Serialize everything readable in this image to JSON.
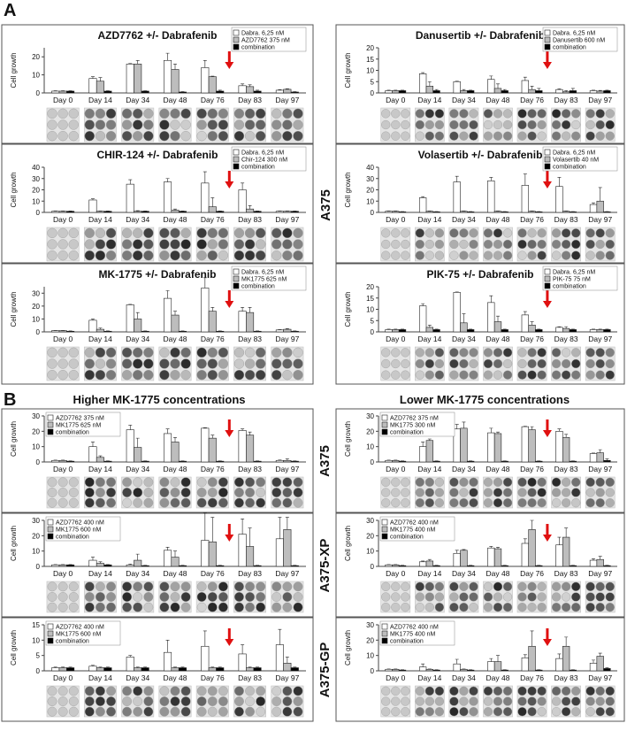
{
  "labels": {
    "panel_a": "A",
    "panel_b": "B",
    "a_cell_line": "A375",
    "b_left_header": "Higher MK-1775 concentrations",
    "b_right_header": "Lower MK-1775 concentrations",
    "b_row_1": "A375",
    "b_row_2": "A375-XP",
    "b_row_3": "A375-GP"
  },
  "chart_data": [
    {
      "type": "bar",
      "title": "AZD7762 +/- Dabrafenib",
      "y_label": "Cell growth",
      "legend": "upper right",
      "categories": [
        "Day 0",
        "Day 14",
        "Day 34",
        "Day 48",
        "Day 76",
        "Day 83",
        "Day 97"
      ],
      "ylim": [
        0,
        25
      ],
      "yticks": [
        0,
        10,
        20
      ],
      "series": [
        {
          "name": "Dabra. 6,25 nM",
          "color": "#ffffff",
          "values": [
            1,
            8,
            16,
            18,
            14,
            4,
            1.5
          ],
          "errors": [
            0.2,
            1,
            0.3,
            4,
            4,
            1,
            0.3
          ]
        },
        {
          "name": "AZD7762 375 nM",
          "color": "#bdbdbd",
          "values": [
            1,
            6.5,
            16,
            13,
            9,
            3.5,
            2
          ],
          "errors": [
            0.2,
            2,
            2,
            3,
            0.3,
            1,
            0.3
          ]
        },
        {
          "name": "combination",
          "color": "#000000",
          "values": [
            1,
            1,
            1,
            0.5,
            1,
            1,
            0.5
          ],
          "errors": [
            0.2,
            0.2,
            0.2,
            0.2,
            0.5,
            0.5,
            0.2
          ]
        }
      ]
    },
    {
      "type": "bar",
      "title": "Danusertib +/- Dabrafenib",
      "y_label": "Cell growth",
      "legend": "upper right",
      "categories": [
        "Day 0",
        "Day 14",
        "Day 34",
        "Day 48",
        "Day 76",
        "Day 83",
        "Day 97"
      ],
      "ylim": [
        0,
        20
      ],
      "yticks": [
        0,
        5,
        10,
        15,
        20
      ],
      "series": [
        {
          "name": "Dabra. 6,25 nM",
          "color": "#ffffff",
          "values": [
            1,
            8.5,
            5,
            6,
            5.5,
            1.5,
            1
          ],
          "errors": [
            0.2,
            0.5,
            0.2,
            1.5,
            1.5,
            0.3,
            0.2
          ]
        },
        {
          "name": "Danusertib 600 nM",
          "color": "#bdbdbd",
          "values": [
            1,
            3,
            1,
            2,
            1.5,
            0.5,
            0.8
          ],
          "errors": [
            0.2,
            2,
            0.5,
            2,
            1.5,
            0.5,
            0.3
          ]
        },
        {
          "name": "combination",
          "color": "#000000",
          "values": [
            1,
            1,
            1,
            1,
            1,
            1,
            1
          ],
          "errors": [
            0.2,
            0.5,
            0.2,
            0.5,
            1,
            1,
            0.2
          ]
        }
      ]
    },
    {
      "type": "bar",
      "title": "CHIR-124 +/- Dabrafenib",
      "y_label": "Cell growth",
      "legend": "upper right",
      "categories": [
        "Day 0",
        "Day 14",
        "Day 34",
        "Day 48",
        "Day 76",
        "Day 83",
        "Day 97"
      ],
      "ylim": [
        0,
        40
      ],
      "yticks": [
        0,
        10,
        20,
        30,
        40
      ],
      "series": [
        {
          "name": "Dabra. 6,25 nM",
          "color": "#ffffff",
          "values": [
            1,
            11,
            25,
            27,
            26,
            20,
            1
          ],
          "errors": [
            0.2,
            1,
            4,
            3,
            10,
            6,
            0.2
          ]
        },
        {
          "name": "Chir-124 300 nM",
          "color": "#bdbdbd",
          "values": [
            1,
            1,
            1,
            2,
            5,
            3,
            1
          ],
          "errors": [
            0.2,
            0.2,
            0.5,
            1,
            8,
            3,
            0.2
          ]
        },
        {
          "name": "combination",
          "color": "#000000",
          "values": [
            1,
            1,
            1,
            1,
            1,
            1,
            1
          ],
          "errors": [
            0.2,
            0.2,
            0.2,
            0.2,
            0.2,
            0.2,
            0.2
          ]
        }
      ]
    },
    {
      "type": "bar",
      "title": "Volasertib +/- Dabrafenib",
      "y_label": "Cell growth",
      "legend": "upper right",
      "categories": [
        "Day 0",
        "Day 14",
        "Day 34",
        "Day 48",
        "Day 76",
        "Day 83",
        "Day 97"
      ],
      "ylim": [
        0,
        40
      ],
      "yticks": [
        0,
        10,
        20,
        30,
        40
      ],
      "series": [
        {
          "name": "Dabra. 6,25 nM",
          "color": "#ffffff",
          "values": [
            1,
            13,
            27,
            28,
            24,
            23,
            7
          ],
          "errors": [
            0.2,
            1,
            5,
            3,
            10,
            8,
            1.5
          ]
        },
        {
          "name": "Volasertib 40 nM",
          "color": "#bdbdbd",
          "values": [
            1,
            1,
            1,
            1,
            1,
            1,
            10
          ],
          "errors": [
            0.2,
            0.2,
            0.2,
            0.2,
            0.2,
            0.2,
            12
          ]
        },
        {
          "name": "combination",
          "color": "#000000",
          "values": [
            0.5,
            0.5,
            0.5,
            0.5,
            0.5,
            0.5,
            0.5
          ],
          "errors": [
            0.2,
            0.2,
            0.2,
            0.2,
            0.2,
            0.2,
            0.2
          ]
        }
      ]
    },
    {
      "type": "bar",
      "title": "MK-1775 +/- Dabrafenib",
      "y_label": "Cell growth",
      "legend": "upper right",
      "categories": [
        "Day 0",
        "Day 14",
        "Day 34",
        "Day 48",
        "Day 76",
        "Day 83",
        "Day 97"
      ],
      "ylim": [
        0,
        35
      ],
      "yticks": [
        0,
        10,
        20,
        30
      ],
      "series": [
        {
          "name": "Dabra. 6,25 nM",
          "color": "#ffffff",
          "values": [
            1,
            9,
            21,
            26,
            34,
            16,
            1.5
          ],
          "errors": [
            0.2,
            1,
            0.3,
            6,
            8,
            3,
            0.3
          ]
        },
        {
          "name": "MK1775 625 nM",
          "color": "#bdbdbd",
          "values": [
            1,
            2,
            10,
            13,
            16,
            15,
            2
          ],
          "errors": [
            0.2,
            1,
            5,
            3,
            3,
            4,
            0.5
          ]
        },
        {
          "name": "combination",
          "color": "#000000",
          "values": [
            0.5,
            0.5,
            0.5,
            0.5,
            0.5,
            0.5,
            0.5
          ],
          "errors": [
            0.2,
            0.2,
            0.2,
            0.2,
            0.2,
            0.2,
            0.2
          ]
        }
      ]
    },
    {
      "type": "bar",
      "title": "PIK-75 +/- Dabrafenib",
      "y_label": "Cell growth",
      "legend": "upper right",
      "categories": [
        "Day 0",
        "Day 14",
        "Day 34",
        "Day 48",
        "Day 76",
        "Day 83",
        "Day 97"
      ],
      "ylim": [
        0,
        20
      ],
      "yticks": [
        0,
        5,
        10,
        15,
        20
      ],
      "series": [
        {
          "name": "Dabra. 6,25 nM",
          "color": "#ffffff",
          "values": [
            1,
            11.5,
            17.5,
            13,
            7.5,
            2,
            1
          ],
          "errors": [
            0.2,
            1,
            0.2,
            3,
            1.5,
            0.3,
            0.2
          ]
        },
        {
          "name": "PIK-75 75 nM",
          "color": "#bdbdbd",
          "values": [
            1,
            2,
            4,
            4.5,
            3,
            1.5,
            1
          ],
          "errors": [
            0.2,
            1,
            4,
            2.5,
            1.5,
            0.8,
            0.2
          ]
        },
        {
          "name": "combination",
          "color": "#000000",
          "values": [
            1,
            1,
            1,
            1,
            1,
            1,
            1
          ],
          "errors": [
            0.2,
            0.2,
            0.2,
            0.2,
            0.2,
            0.2,
            0.2
          ]
        }
      ]
    },
    {
      "type": "bar",
      "y_label": "Cell growth",
      "legend": "upper left",
      "categories": [
        "Day 0",
        "Day 14",
        "Day 34",
        "Day 48",
        "Day 76",
        "Day 83",
        "Day 97"
      ],
      "ylim": [
        0,
        30
      ],
      "yticks": [
        0,
        10,
        20,
        30
      ],
      "series": [
        {
          "name": "AZD7762 375 nM",
          "color": "#ffffff",
          "values": [
            1,
            10,
            21,
            18.5,
            22,
            20.5,
            1
          ],
          "errors": [
            0.2,
            3,
            3,
            3,
            0.3,
            1,
            0.3
          ]
        },
        {
          "name": "MK1775 625 nM",
          "color": "#bdbdbd",
          "values": [
            1,
            3,
            9.5,
            13,
            15.5,
            17.5,
            1
          ],
          "errors": [
            0.2,
            1,
            6,
            3,
            2,
            2,
            1
          ]
        },
        {
          "name": "combination",
          "color": "#000000",
          "values": [
            0.5,
            0.5,
            0.5,
            0.5,
            0.5,
            0.5,
            0.5
          ],
          "errors": [
            0.2,
            0.2,
            0.2,
            0.2,
            0.2,
            0.2,
            0.2
          ]
        }
      ]
    },
    {
      "type": "bar",
      "y_label": "Cell growth",
      "legend": "upper left",
      "categories": [
        "Day 0",
        "Day 14",
        "Day 34",
        "Day 48",
        "Day 76",
        "Day 83",
        "Day 97"
      ],
      "ylim": [
        0,
        30
      ],
      "yticks": [
        0,
        10,
        20,
        30
      ],
      "series": [
        {
          "name": "AZD7762 375 nM",
          "color": "#ffffff",
          "values": [
            1,
            10,
            21.5,
            19,
            23,
            20,
            5.5
          ],
          "errors": [
            0.2,
            3,
            3,
            3,
            0.3,
            1.5,
            0.3
          ]
        },
        {
          "name": "MK1775 300 nM",
          "color": "#bdbdbd",
          "values": [
            1,
            14,
            22,
            18.5,
            21,
            16,
            6
          ],
          "errors": [
            0.2,
            1,
            4,
            1,
            2,
            2,
            2
          ]
        },
        {
          "name": "combination",
          "color": "#000000",
          "values": [
            0.5,
            0.5,
            0.5,
            0.5,
            0.5,
            0.5,
            1
          ],
          "errors": [
            0.2,
            0.2,
            0.2,
            0.2,
            0.2,
            0.2,
            1
          ]
        }
      ]
    },
    {
      "type": "bar",
      "y_label": "Cell growth",
      "legend": "upper left",
      "categories": [
        "Day 0",
        "Day 14",
        "Day 34",
        "Day 48",
        "Day 76",
        "Day 83",
        "Day 97"
      ],
      "ylim": [
        0,
        30
      ],
      "yticks": [
        0,
        10,
        20,
        30
      ],
      "series": [
        {
          "name": "AZD7762 400 nM",
          "color": "#ffffff",
          "values": [
            1,
            4,
            1,
            10.5,
            17,
            21,
            18
          ],
          "errors": [
            0.2,
            2,
            0.5,
            2,
            18,
            10,
            14
          ]
        },
        {
          "name": "MK1775 600 nM",
          "color": "#bdbdbd",
          "values": [
            1,
            2,
            4,
            6,
            16,
            13,
            24
          ],
          "errors": [
            0.2,
            1,
            4,
            4,
            16,
            12,
            8
          ]
        },
        {
          "name": "combination",
          "color": "#000000",
          "values": [
            1,
            1,
            0.5,
            0.5,
            0.5,
            0.5,
            0.5
          ],
          "errors": [
            0.2,
            0.2,
            0.2,
            0.2,
            0.2,
            0.2,
            0.2
          ]
        }
      ]
    },
    {
      "type": "bar",
      "y_label": "Cell growth",
      "legend": "upper left",
      "categories": [
        "Day 0",
        "Day 14",
        "Day 34",
        "Day 48",
        "Day 76",
        "Day 83",
        "Day 97"
      ],
      "ylim": [
        0,
        30
      ],
      "yticks": [
        0,
        10,
        20,
        30
      ],
      "series": [
        {
          "name": "AZD7762 400 nM",
          "color": "#ffffff",
          "values": [
            1,
            3,
            8.5,
            12,
            15,
            14,
            4
          ],
          "errors": [
            0.2,
            0.5,
            2,
            1,
            3,
            5,
            1
          ]
        },
        {
          "name": "MK1775 400 nM",
          "color": "#bdbdbd",
          "values": [
            1,
            3.5,
            10.5,
            11.5,
            24,
            19,
            4.5
          ],
          "errors": [
            0.2,
            1,
            0.5,
            1,
            6,
            6,
            2
          ]
        },
        {
          "name": "combination",
          "color": "#000000",
          "values": [
            0.5,
            0.5,
            0.5,
            0.5,
            0.5,
            0.5,
            0.5
          ],
          "errors": [
            0.2,
            0.2,
            0.2,
            0.2,
            0.2,
            0.2,
            0.2
          ]
        }
      ]
    },
    {
      "type": "bar",
      "y_label": "Cell growth",
      "legend": "upper left",
      "categories": [
        "Day 0",
        "Day 14",
        "Day 34",
        "Day 48",
        "Day 76",
        "Day 83",
        "Day 97"
      ],
      "ylim": [
        0,
        15
      ],
      "yticks": [
        0,
        5,
        10,
        15
      ],
      "series": [
        {
          "name": "AZD7762 400 nM",
          "color": "#ffffff",
          "values": [
            1,
            1.5,
            4.5,
            6,
            8,
            5.5,
            8.5
          ],
          "errors": [
            0.2,
            0.3,
            0.5,
            4,
            5,
            3,
            5
          ]
        },
        {
          "name": "MK1775 600 nM",
          "color": "#bdbdbd",
          "values": [
            1,
            1,
            1,
            1,
            1,
            1,
            2.5
          ],
          "errors": [
            0.2,
            0.2,
            0.2,
            0.2,
            0.2,
            0.2,
            2
          ]
        },
        {
          "name": "combination",
          "color": "#000000",
          "values": [
            1,
            1,
            1,
            1,
            1,
            1,
            1
          ],
          "errors": [
            0.2,
            0.2,
            0.2,
            0.2,
            0.2,
            0.2,
            0.2
          ]
        }
      ]
    },
    {
      "type": "bar",
      "y_label": "Cell growth",
      "legend": "upper left",
      "categories": [
        "Day 0",
        "Day 14",
        "Day 34",
        "Day 48",
        "Day 76",
        "Day 83",
        "Day 97"
      ],
      "ylim": [
        0,
        30
      ],
      "yticks": [
        0,
        10,
        20,
        30
      ],
      "series": [
        {
          "name": "AZD7762 400 nM",
          "color": "#ffffff",
          "values": [
            1,
            2.5,
            4.5,
            6,
            8.5,
            8,
            5
          ],
          "errors": [
            0.2,
            2,
            3,
            2,
            2,
            3,
            2
          ]
        },
        {
          "name": "MK1775 400 nM",
          "color": "#bdbdbd",
          "values": [
            1,
            1,
            1,
            6,
            16,
            16,
            9.5
          ],
          "errors": [
            0.2,
            0.2,
            0.2,
            4,
            10,
            6,
            2
          ]
        },
        {
          "name": "combination",
          "color": "#000000",
          "values": [
            0.5,
            0.5,
            0.5,
            0.5,
            0.5,
            0.5,
            1.5
          ],
          "errors": [
            0.2,
            0.2,
            0.2,
            0.2,
            0.2,
            0.2,
            0.5
          ]
        }
      ]
    }
  ]
}
